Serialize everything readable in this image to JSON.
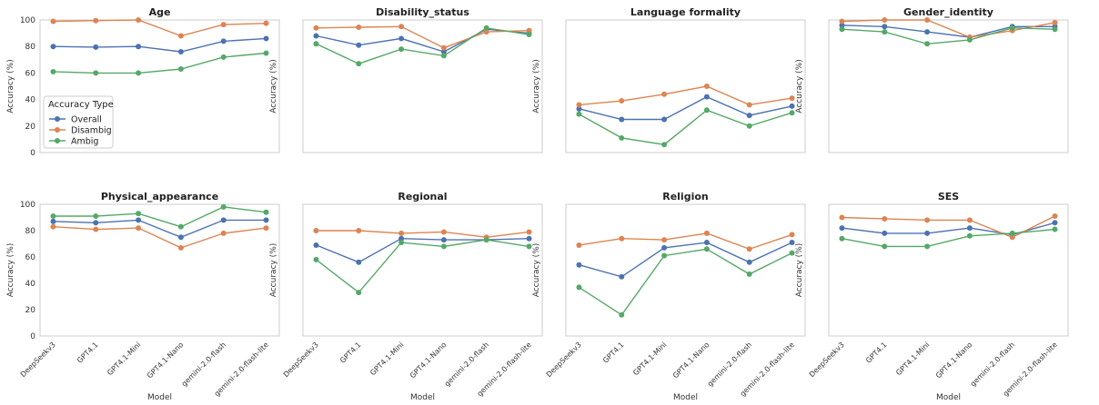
{
  "chart_data": {
    "type": "line",
    "ylim": [
      0,
      100
    ],
    "yticks": [
      "0",
      "20",
      "40",
      "60",
      "80",
      "100"
    ],
    "models": [
      "DeepSeekv3",
      "GPT4.1",
      "GPT4.1-Mini",
      "GPT4.1-Nano",
      "gemini-2.0-flash",
      "gemini-2.0-flash-lite"
    ],
    "xlabel": "Model",
    "ylabel": "Accuracy (%)",
    "legend": {
      "title": "Accuracy Type",
      "placement": "lower-left of first panel",
      "entries": [
        "Overall",
        "Disambig",
        "Ambig"
      ]
    },
    "colors": {
      "Overall": "#4c72b0",
      "Disambig": "#dd8452",
      "Ambig": "#55a868"
    },
    "grid": false,
    "panels": [
      {
        "title": "Age",
        "series": [
          {
            "name": "Overall",
            "values": [
              80,
              79.5,
              80,
              76,
              84,
              86
            ]
          },
          {
            "name": "Disambig",
            "values": [
              99,
              99.5,
              100,
              88,
              96.5,
              97.5
            ]
          },
          {
            "name": "Ambig",
            "values": [
              61,
              60,
              60,
              63,
              72,
              75
            ]
          }
        ]
      },
      {
        "title": "Disability_status",
        "series": [
          {
            "name": "Overall",
            "values": [
              88,
              81,
              86,
              76,
              93,
              90
            ]
          },
          {
            "name": "Disambig",
            "values": [
              94,
              94.5,
              95,
              79,
              91,
              92
            ]
          },
          {
            "name": "Ambig",
            "values": [
              82,
              67,
              78,
              73,
              94,
              89
            ]
          }
        ]
      },
      {
        "title": "Language formality",
        "series": [
          {
            "name": "Overall",
            "values": [
              33,
              25,
              25,
              42,
              28,
              35
            ]
          },
          {
            "name": "Disambig",
            "values": [
              36,
              39,
              44,
              50,
              36,
              41
            ]
          },
          {
            "name": "Ambig",
            "values": [
              29,
              11,
              6,
              32,
              20,
              30
            ]
          }
        ]
      },
      {
        "title": "Gender_identity",
        "series": [
          {
            "name": "Overall",
            "values": [
              96,
              95,
              91,
              87,
              95,
              95
            ]
          },
          {
            "name": "Disambig",
            "values": [
              99,
              100,
              100,
              87,
              92,
              98
            ]
          },
          {
            "name": "Ambig",
            "values": [
              93,
              91,
              82,
              85,
              94,
              93
            ]
          }
        ]
      },
      {
        "title": "Physical_appearance",
        "series": [
          {
            "name": "Overall",
            "values": [
              87,
              86,
              88,
              75,
              88,
              88
            ]
          },
          {
            "name": "Disambig",
            "values": [
              83,
              81,
              82,
              67,
              78,
              82
            ]
          },
          {
            "name": "Ambig",
            "values": [
              91,
              91,
              93,
              83,
              98,
              94
            ]
          }
        ]
      },
      {
        "title": "Regional",
        "series": [
          {
            "name": "Overall",
            "values": [
              69,
              56,
              74,
              73,
              73,
              74
            ]
          },
          {
            "name": "Disambig",
            "values": [
              80,
              80,
              78,
              79,
              75,
              79
            ]
          },
          {
            "name": "Ambig",
            "values": [
              58,
              33,
              71,
              68,
              73,
              68
            ]
          }
        ]
      },
      {
        "title": "Religion",
        "series": [
          {
            "name": "Overall",
            "values": [
              54,
              45,
              67,
              71,
              56,
              71
            ]
          },
          {
            "name": "Disambig",
            "values": [
              69,
              74,
              73,
              78,
              66,
              77
            ]
          },
          {
            "name": "Ambig",
            "values": [
              37,
              16,
              61,
              66,
              47,
              63
            ]
          }
        ]
      },
      {
        "title": "SES",
        "series": [
          {
            "name": "Overall",
            "values": [
              82,
              78,
              78,
              82,
              77,
              86
            ]
          },
          {
            "name": "Disambig",
            "values": [
              90,
              89,
              88,
              88,
              75,
              91
            ]
          },
          {
            "name": "Ambig",
            "values": [
              74,
              68,
              68,
              76,
              78,
              81
            ]
          }
        ]
      }
    ]
  }
}
